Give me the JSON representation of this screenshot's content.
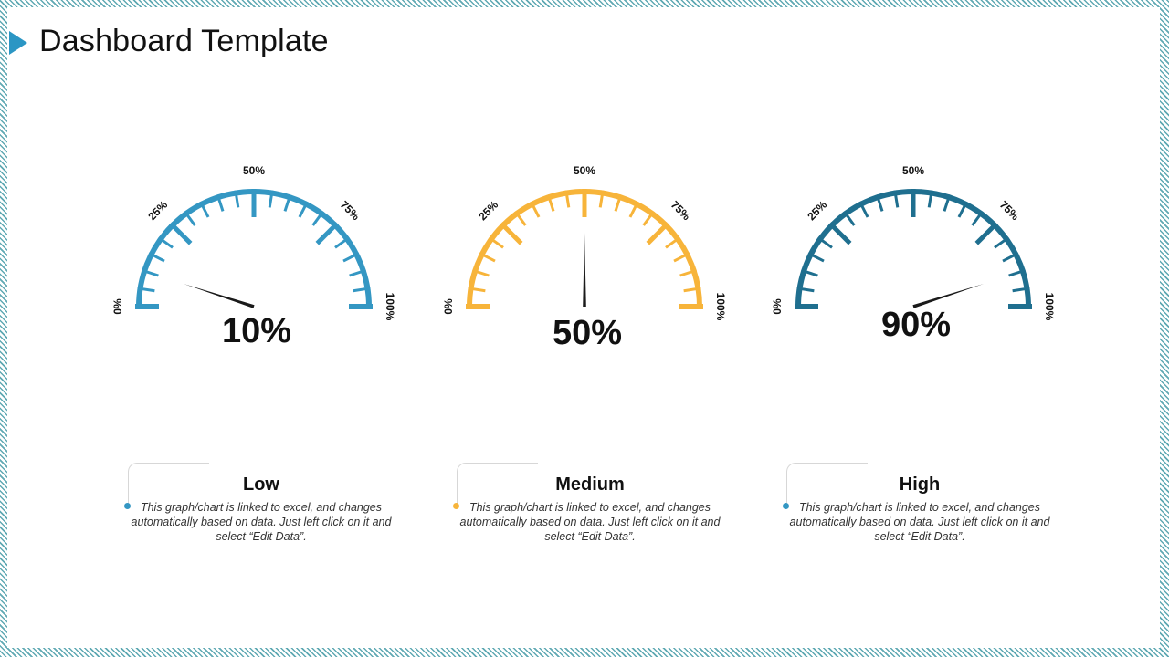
{
  "title": "Dashboard Template",
  "colors": {
    "accent": "#2b96c4",
    "needle": "#1a1a1a"
  },
  "chart_data": [
    {
      "type": "gauge",
      "value": 10,
      "value_label": "10%",
      "range": [
        0,
        100
      ],
      "tick_labels": [
        "0%",
        "25%",
        "50%",
        "75%",
        "100%"
      ],
      "color": "#3497c3"
    },
    {
      "type": "gauge",
      "value": 50,
      "value_label": "50%",
      "range": [
        0,
        100
      ],
      "tick_labels": [
        "0%",
        "25%",
        "50%",
        "75%",
        "100%"
      ],
      "color": "#f7b43a"
    },
    {
      "type": "gauge",
      "value": 90,
      "value_label": "90%",
      "range": [
        0,
        100
      ],
      "tick_labels": [
        "0%",
        "25%",
        "50%",
        "75%",
        "100%"
      ],
      "color": "#1f6f8f"
    }
  ],
  "cards": [
    {
      "heading": "Low",
      "text": "This graph/chart is linked to excel, and changes automatically based on data. Just left click on it and select “Edit Data”.",
      "dot_color": "#3497c3"
    },
    {
      "heading": "Medium",
      "text": "This graph/chart is linked to excel, and changes automatically based on data. Just left click on it and select “Edit Data”.",
      "dot_color": "#f7b43a"
    },
    {
      "heading": "High",
      "text": "This graph/chart is linked to excel, and changes automatically based on data. Just left click on it and select “Edit Data”.",
      "dot_color": "#3497c3"
    }
  ]
}
